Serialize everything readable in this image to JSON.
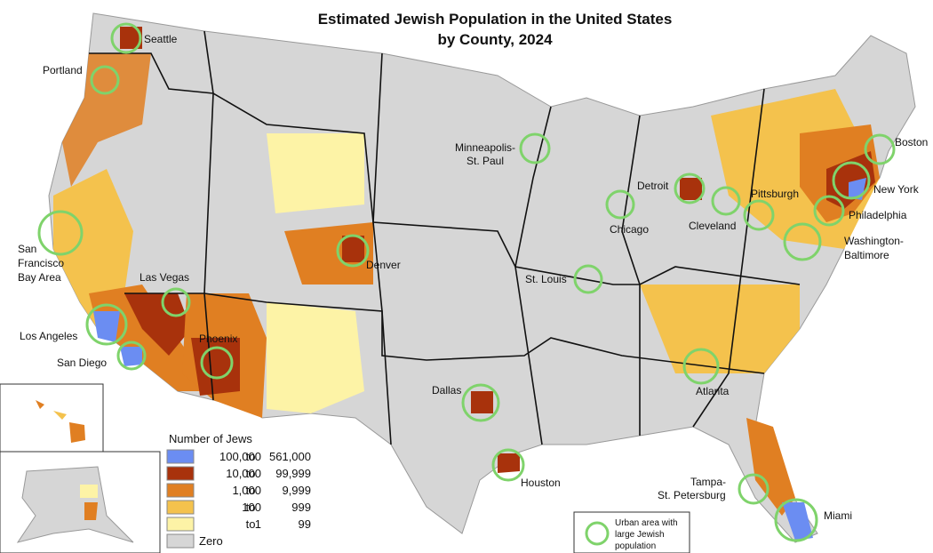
{
  "header": {
    "title": [
      "Estimated Jewish Population in the United States",
      "by County, 2024"
    ]
  },
  "legend": {
    "title": "Number of Jews",
    "items": [
      {
        "color": "#6b8df2",
        "parts": [
          "100,000",
          "to",
          "561,000"
        ]
      },
      {
        "color": "#a8320c",
        "parts": [
          "10,000",
          "to",
          "99,999"
        ]
      },
      {
        "color": "#e07f22",
        "parts": [
          "1,000",
          "to",
          "9,999"
        ]
      },
      {
        "color": "#f4c24d",
        "parts": [
          "100",
          "to",
          "999"
        ]
      },
      {
        "color": "#fdf3a6",
        "parts": [
          "1",
          "to",
          "99"
        ]
      },
      {
        "color": "#d6d6d6",
        "parts": [
          "Zero"
        ]
      }
    ],
    "note": [
      "Urban area with",
      "large Jewish",
      "population"
    ]
  },
  "cities": [
    {
      "lines": [
        "Seattle"
      ]
    },
    {
      "lines": [
        "Portland"
      ]
    },
    {
      "lines": [
        "San",
        "Francisco",
        "Bay Area"
      ]
    },
    {
      "lines": [
        "Las Vegas"
      ]
    },
    {
      "lines": [
        "Los Angeles"
      ]
    },
    {
      "lines": [
        "San Diego"
      ]
    },
    {
      "lines": [
        "Phoenix"
      ]
    },
    {
      "lines": [
        "Denver"
      ]
    },
    {
      "lines": [
        "Minneapolis-",
        "St. Paul"
      ]
    },
    {
      "lines": [
        "St. Louis"
      ]
    },
    {
      "lines": [
        "Dallas"
      ]
    },
    {
      "lines": [
        "Houston"
      ]
    },
    {
      "lines": [
        "Chicago"
      ]
    },
    {
      "lines": [
        "Detroit"
      ]
    },
    {
      "lines": [
        "Cleveland"
      ]
    },
    {
      "lines": [
        "Pittsburgh"
      ]
    },
    {
      "lines": [
        "Boston"
      ]
    },
    {
      "lines": [
        "New York"
      ]
    },
    {
      "lines": [
        "Philadelphia"
      ]
    },
    {
      "lines": [
        "Washington-",
        "Baltimore"
      ]
    },
    {
      "lines": [
        "Atlanta"
      ]
    },
    {
      "lines": [
        "Tampa-",
        "St. Petersburg"
      ]
    },
    {
      "lines": [
        "Miami"
      ]
    }
  ]
}
